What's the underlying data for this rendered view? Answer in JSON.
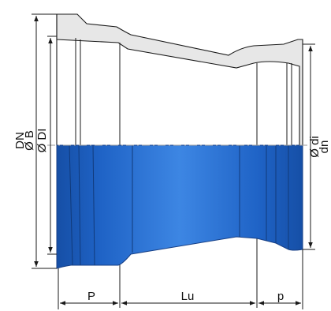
{
  "diagram": {
    "labels": {
      "dn_left": "DN",
      "b_left": "Ø B",
      "di_left": "Ø DI",
      "di_right": "Ø di",
      "dn_right": "dn",
      "p_left": "P",
      "lu": "Lu",
      "p_right": "p"
    },
    "colors": {
      "fitting_blue": "#1f63c6",
      "fitting_blue_light": "#3d86e3",
      "fitting_blue_dark": "#164fa6",
      "section_fill": "#e7e7e7",
      "line": "#1a1a1a",
      "axis": "#999999"
    }
  }
}
